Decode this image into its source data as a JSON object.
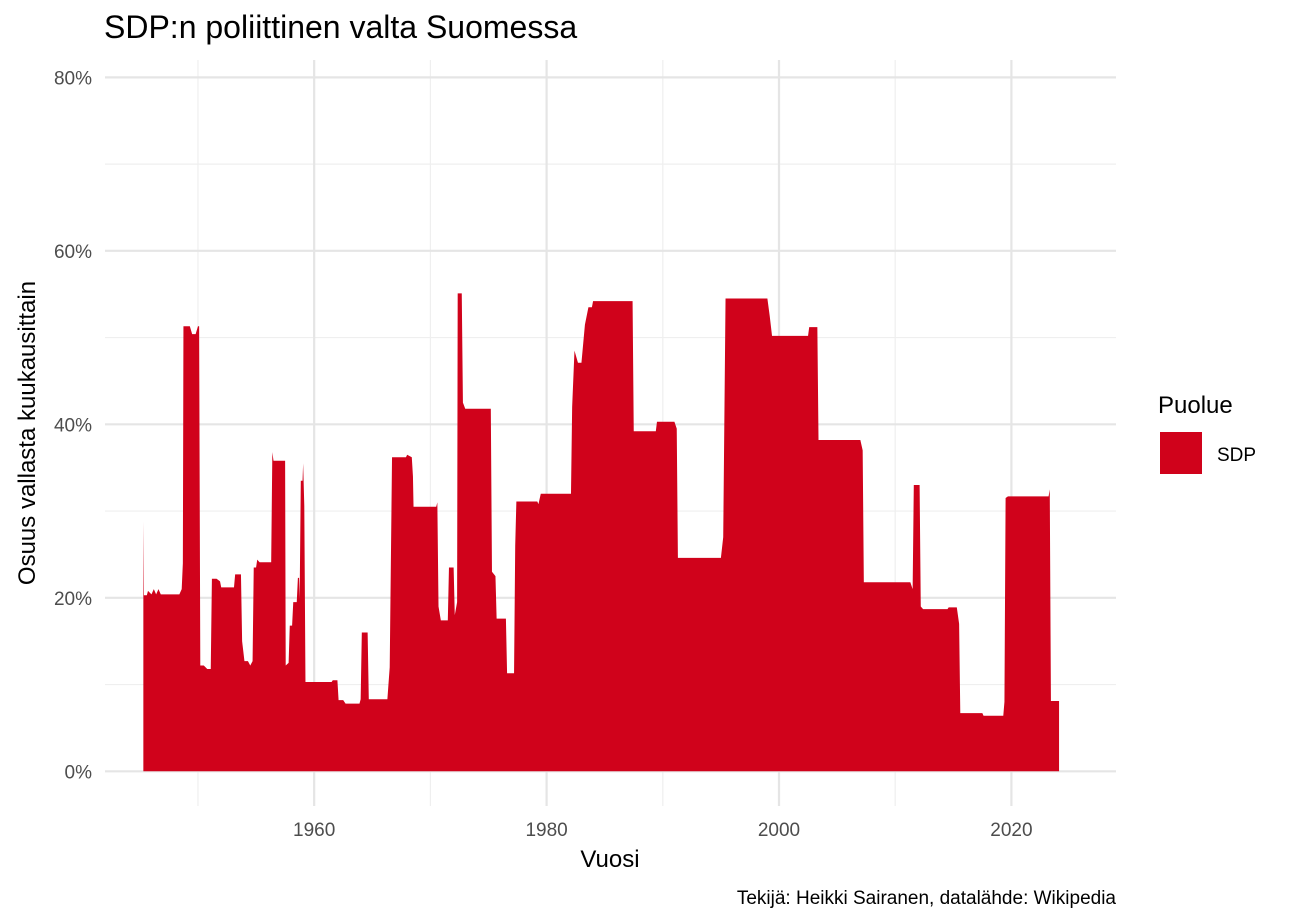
{
  "chart_data": {
    "type": "area",
    "title": "SDP:n poliittinen valta Suomessa",
    "xlabel": "Vuosi",
    "ylabel": "Osuus vallasta kuukausittain",
    "caption": "Tekijä: Heikki Sairanen, datalähde: Wikipedia",
    "xlim": [
      1942,
      2029
    ],
    "ylim": [
      -4,
      82
    ],
    "x_ticks": [
      1960,
      1980,
      2000,
      2020
    ],
    "x_tick_labels": [
      "1960",
      "1980",
      "2000",
      "2020"
    ],
    "y_ticks": [
      0,
      20,
      40,
      60,
      80
    ],
    "y_tick_labels": [
      "0%",
      "20%",
      "40%",
      "60%",
      "80%"
    ],
    "grid": true,
    "legend": {
      "title": "Puolue",
      "position": "right"
    },
    "series": [
      {
        "name": "SDP",
        "color": "#d0021b",
        "points": [
          [
            1945.3,
            28.8
          ],
          [
            1945.35,
            20.3
          ],
          [
            1945.6,
            20.3
          ],
          [
            1945.7,
            20.8
          ],
          [
            1946.0,
            20.4
          ],
          [
            1946.2,
            21.0
          ],
          [
            1946.4,
            20.4
          ],
          [
            1946.6,
            21.0
          ],
          [
            1946.8,
            20.4
          ],
          [
            1948.4,
            20.4
          ],
          [
            1948.6,
            21.0
          ],
          [
            1948.7,
            24.0
          ],
          [
            1948.75,
            51.3
          ],
          [
            1949.3,
            51.3
          ],
          [
            1949.5,
            50.4
          ],
          [
            1949.8,
            50.4
          ],
          [
            1950.0,
            51.3
          ],
          [
            1950.1,
            51.3
          ],
          [
            1950.2,
            12.2
          ],
          [
            1950.5,
            12.2
          ],
          [
            1950.8,
            11.8
          ],
          [
            1951.1,
            11.8
          ],
          [
            1951.2,
            22.2
          ],
          [
            1951.6,
            22.2
          ],
          [
            1951.9,
            21.9
          ],
          [
            1952.0,
            21.2
          ],
          [
            1953.1,
            21.2
          ],
          [
            1953.2,
            22.7
          ],
          [
            1953.7,
            22.7
          ],
          [
            1953.8,
            15.0
          ],
          [
            1954.0,
            12.7
          ],
          [
            1954.3,
            12.7
          ],
          [
            1954.5,
            12.2
          ],
          [
            1954.7,
            12.7
          ],
          [
            1954.8,
            23.5
          ],
          [
            1955.0,
            23.5
          ],
          [
            1955.1,
            24.4
          ],
          [
            1955.3,
            24.1
          ],
          [
            1956.3,
            24.1
          ],
          [
            1956.4,
            36.8
          ],
          [
            1956.5,
            35.8
          ],
          [
            1957.5,
            35.8
          ],
          [
            1957.55,
            12.2
          ],
          [
            1957.8,
            12.5
          ],
          [
            1957.9,
            16.8
          ],
          [
            1958.1,
            16.8
          ],
          [
            1958.2,
            19.5
          ],
          [
            1958.5,
            19.5
          ],
          [
            1958.6,
            22.3
          ],
          [
            1958.7,
            22.3
          ],
          [
            1958.75,
            19.9
          ],
          [
            1958.85,
            33.5
          ],
          [
            1959.0,
            33.5
          ],
          [
            1959.05,
            35.5
          ],
          [
            1959.15,
            30.6
          ],
          [
            1959.25,
            10.3
          ],
          [
            1961.5,
            10.3
          ],
          [
            1961.6,
            10.5
          ],
          [
            1962.0,
            10.5
          ],
          [
            1962.1,
            8.2
          ],
          [
            1962.5,
            8.2
          ],
          [
            1962.7,
            7.8
          ],
          [
            1963.9,
            7.8
          ],
          [
            1964.0,
            8.3
          ],
          [
            1964.1,
            16.0
          ],
          [
            1964.6,
            16.0
          ],
          [
            1964.7,
            8.3
          ],
          [
            1966.3,
            8.3
          ],
          [
            1966.5,
            12.0
          ],
          [
            1966.7,
            36.2
          ],
          [
            1967.9,
            36.2
          ],
          [
            1968.0,
            36.5
          ],
          [
            1968.4,
            36.2
          ],
          [
            1968.5,
            34.0
          ],
          [
            1968.55,
            30.5
          ],
          [
            1969.3,
            30.5
          ],
          [
            1970.5,
            30.5
          ],
          [
            1970.6,
            31.0
          ],
          [
            1970.7,
            19.0
          ],
          [
            1970.9,
            17.4
          ],
          [
            1971.5,
            17.4
          ],
          [
            1971.6,
            23.5
          ],
          [
            1972.0,
            23.5
          ],
          [
            1972.1,
            18.0
          ],
          [
            1972.3,
            19.5
          ],
          [
            1972.35,
            55.1
          ],
          [
            1972.7,
            55.1
          ],
          [
            1972.8,
            42.5
          ],
          [
            1973.0,
            41.8
          ],
          [
            1975.2,
            41.8
          ],
          [
            1975.3,
            23.0
          ],
          [
            1975.6,
            22.5
          ],
          [
            1975.7,
            17.6
          ],
          [
            1976.5,
            17.6
          ],
          [
            1976.6,
            11.3
          ],
          [
            1977.2,
            11.3
          ],
          [
            1977.3,
            26.0
          ],
          [
            1977.4,
            31.1
          ],
          [
            1979.2,
            31.1
          ],
          [
            1979.3,
            30.8
          ],
          [
            1979.5,
            32.0
          ],
          [
            1982.1,
            32.0
          ],
          [
            1982.2,
            42.0
          ],
          [
            1982.4,
            48.5
          ],
          [
            1982.7,
            47.1
          ],
          [
            1983.0,
            47.1
          ],
          [
            1983.3,
            51.5
          ],
          [
            1983.6,
            53.5
          ],
          [
            1983.9,
            53.5
          ],
          [
            1984.0,
            54.2
          ],
          [
            1987.4,
            54.2
          ],
          [
            1987.5,
            39.2
          ],
          [
            1989.4,
            39.2
          ],
          [
            1989.5,
            40.3
          ],
          [
            1991.0,
            40.3
          ],
          [
            1991.2,
            39.5
          ],
          [
            1991.3,
            24.6
          ],
          [
            1995.0,
            24.6
          ],
          [
            1995.2,
            27.0
          ],
          [
            1995.4,
            54.5
          ],
          [
            1999.0,
            54.5
          ],
          [
            1999.2,
            52.5
          ],
          [
            1999.4,
            50.2
          ],
          [
            2002.5,
            50.2
          ],
          [
            2002.6,
            51.2
          ],
          [
            2003.3,
            51.2
          ],
          [
            2003.4,
            38.2
          ],
          [
            2007.0,
            38.2
          ],
          [
            2007.2,
            37.0
          ],
          [
            2007.3,
            21.8
          ],
          [
            2011.3,
            21.8
          ],
          [
            2011.5,
            21.0
          ],
          [
            2011.6,
            33.0
          ],
          [
            2012.1,
            33.0
          ],
          [
            2012.2,
            19.0
          ],
          [
            2012.4,
            18.7
          ],
          [
            2014.5,
            18.7
          ],
          [
            2014.6,
            18.9
          ],
          [
            2015.3,
            18.9
          ],
          [
            2015.5,
            17.0
          ],
          [
            2015.6,
            6.7
          ],
          [
            2017.5,
            6.7
          ],
          [
            2017.6,
            6.4
          ],
          [
            2019.3,
            6.4
          ],
          [
            2019.4,
            8.0
          ],
          [
            2019.5,
            31.5
          ],
          [
            2019.7,
            31.7
          ],
          [
            2023.2,
            31.7
          ],
          [
            2023.3,
            32.5
          ],
          [
            2023.4,
            8.1
          ],
          [
            2024.1,
            8.1
          ]
        ]
      }
    ]
  }
}
